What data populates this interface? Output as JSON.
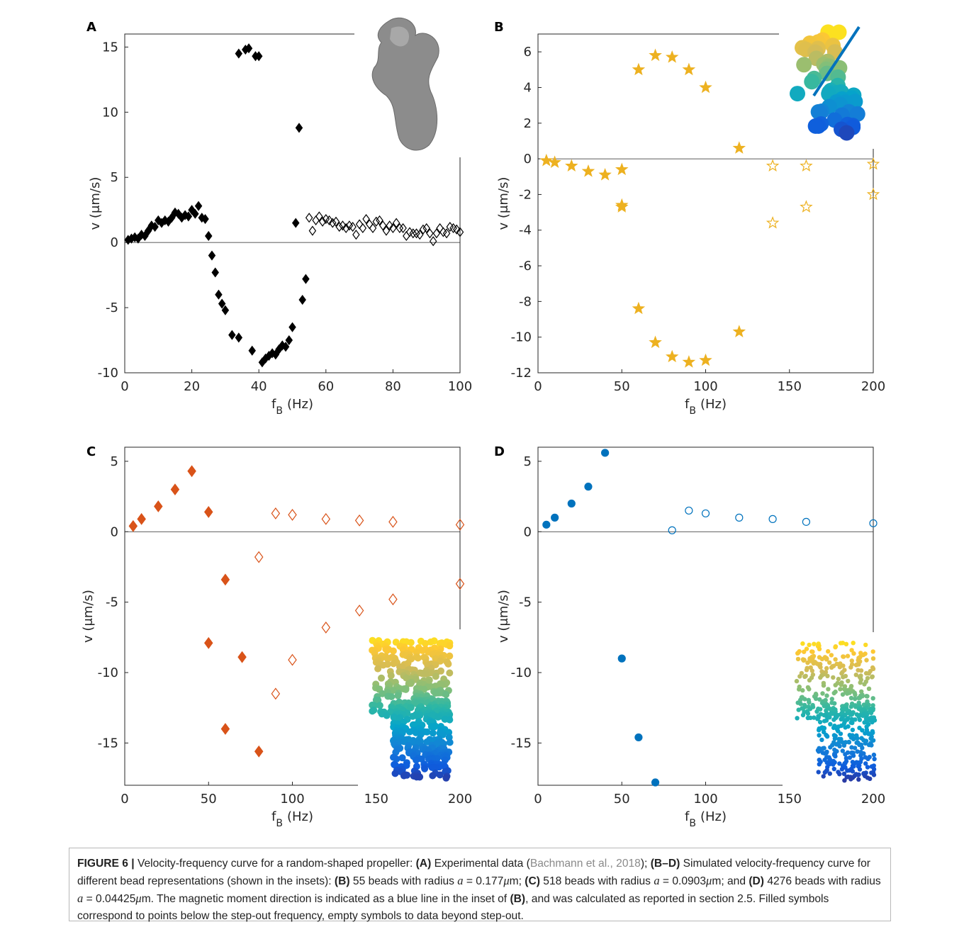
{
  "chart_data": [
    {
      "type": "scatter",
      "label": "A",
      "xlabel": "f",
      "xlabel_sub": "B",
      "xlabel_unit": "(Hz)",
      "ylabel": "v (μm/s)",
      "xlim": [
        0,
        100
      ],
      "ylim": [
        -10,
        16
      ],
      "xticks": [
        0,
        20,
        40,
        60,
        80,
        100
      ],
      "yticks": [
        -10,
        -5,
        0,
        5,
        10,
        15
      ],
      "series": [
        {
          "marker": "diamond",
          "filled": true,
          "color": "#000000",
          "x": [
            1,
            2,
            3,
            4,
            5,
            6,
            7,
            8,
            9,
            10,
            11,
            12,
            13,
            14,
            15,
            16,
            17,
            18,
            19,
            20,
            21,
            22,
            23,
            24,
            25,
            26,
            27,
            28,
            29,
            30,
            32,
            34,
            34,
            36,
            37,
            38,
            39,
            40,
            41,
            42,
            43,
            44,
            45,
            46,
            47,
            48,
            49,
            50,
            51,
            52,
            53,
            54
          ],
          "values": [
            0.2,
            0.3,
            0.4,
            0.3,
            0.6,
            0.5,
            0.9,
            1.3,
            1.2,
            1.7,
            1.5,
            1.7,
            1.6,
            1.9,
            2.3,
            2.2,
            1.9,
            2.1,
            2.0,
            2.5,
            2.2,
            2.8,
            1.9,
            1.8,
            0.5,
            -1.0,
            -2.3,
            -4.0,
            -4.7,
            -5.2,
            -7.1,
            -7.3,
            14.5,
            14.8,
            14.9,
            -8.3,
            14.3,
            14.3,
            -9.2,
            -8.9,
            -8.7,
            -8.5,
            -8.6,
            -8.2,
            -7.9,
            -8.0,
            -7.5,
            -6.5,
            1.5,
            8.8,
            -4.4,
            -2.8
          ]
        },
        {
          "marker": "diamond",
          "filled": false,
          "color": "#000000",
          "x": [
            55,
            56,
            57,
            58,
            59,
            60,
            61,
            62,
            63,
            64,
            65,
            66,
            67,
            68,
            69,
            70,
            71,
            72,
            73,
            74,
            75,
            76,
            77,
            78,
            79,
            80,
            81,
            82,
            83,
            84,
            85,
            86,
            87,
            88,
            89,
            90,
            91,
            92,
            93,
            94,
            95,
            96,
            97,
            98,
            99,
            100
          ],
          "values": [
            1.9,
            0.9,
            1.7,
            2.0,
            1.6,
            1.8,
            1.7,
            1.5,
            1.6,
            1.2,
            1.3,
            1.1,
            1.3,
            1.2,
            0.6,
            1.4,
            1.1,
            1.8,
            1.4,
            1.1,
            1.6,
            1.7,
            1.3,
            0.9,
            1.3,
            1.1,
            1.5,
            1.1,
            1.1,
            0.5,
            0.8,
            0.7,
            0.7,
            0.6,
            1.0,
            1.1,
            0.7,
            0.1,
            0.7,
            1.1,
            0.8,
            0.7,
            1.2,
            1.1,
            1.0,
            0.8
          ]
        }
      ]
    },
    {
      "type": "scatter",
      "label": "B",
      "xlabel": "f",
      "xlabel_sub": "B",
      "xlabel_unit": "(Hz)",
      "ylabel": "v (μm/s)",
      "xlim": [
        0,
        200
      ],
      "ylim": [
        -12,
        7
      ],
      "xticks": [
        0,
        50,
        100,
        150,
        200
      ],
      "yticks": [
        -12,
        -10,
        -8,
        -6,
        -4,
        -2,
        0,
        2,
        4,
        6
      ],
      "series": [
        {
          "marker": "star",
          "filled": true,
          "color": "#edb120",
          "x": [
            5,
            10,
            20,
            30,
            40,
            50,
            50,
            50,
            60,
            70,
            80,
            90,
            100,
            120,
            60,
            70,
            80,
            90,
            100,
            120
          ],
          "values": [
            -0.1,
            -0.2,
            -0.4,
            -0.7,
            -0.9,
            -0.6,
            -2.6,
            -2.7,
            5.0,
            5.8,
            5.7,
            5.0,
            4.0,
            0.6,
            -8.4,
            -10.3,
            -11.1,
            -11.4,
            -11.3,
            -9.7
          ]
        },
        {
          "marker": "star",
          "filled": false,
          "color": "#edb120",
          "x": [
            140,
            140,
            160,
            160,
            200,
            200
          ],
          "values": [
            -0.4,
            -3.6,
            -0.4,
            -2.7,
            -0.3,
            -2.0
          ]
        }
      ]
    },
    {
      "type": "scatter",
      "label": "C",
      "xlabel": "f",
      "xlabel_sub": "B",
      "xlabel_unit": "(Hz)",
      "ylabel": "v (μm/s)",
      "xlim": [
        0,
        200
      ],
      "ylim": [
        -18,
        6
      ],
      "xticks": [
        0,
        50,
        100,
        150,
        200
      ],
      "yticks": [
        -15,
        -10,
        -5,
        0,
        5
      ],
      "series": [
        {
          "marker": "diamond",
          "filled": true,
          "color": "#d95319",
          "x": [
            5,
            10,
            20,
            30,
            40,
            50,
            60,
            50,
            70,
            60,
            80
          ],
          "values": [
            0.4,
            0.9,
            1.8,
            3.0,
            4.3,
            1.4,
            -3.4,
            -7.9,
            -8.9,
            -14.0,
            -15.6
          ]
        },
        {
          "marker": "diamond",
          "filled": false,
          "color": "#d95319",
          "x": [
            80,
            90,
            100,
            120,
            140,
            160,
            200,
            90,
            100,
            120,
            140,
            160,
            200
          ],
          "values": [
            -1.8,
            1.3,
            1.2,
            0.9,
            0.8,
            0.7,
            0.5,
            -11.5,
            -9.1,
            -6.8,
            -5.6,
            -4.8,
            -3.7
          ]
        }
      ]
    },
    {
      "type": "scatter",
      "label": "D",
      "xlabel": "f",
      "xlabel_sub": "B",
      "xlabel_unit": "(Hz)",
      "ylabel": "v (μm/s)",
      "xlim": [
        0,
        200
      ],
      "ylim": [
        -18,
        6
      ],
      "xticks": [
        0,
        50,
        100,
        150,
        200
      ],
      "yticks": [
        -15,
        -10,
        -5,
        0,
        5
      ],
      "series": [
        {
          "marker": "circle",
          "filled": true,
          "color": "#0072bd",
          "x": [
            5,
            10,
            20,
            30,
            40,
            50,
            60,
            70
          ],
          "values": [
            0.5,
            1.0,
            2.0,
            3.2,
            5.6,
            -9.0,
            -14.6,
            -17.8
          ]
        },
        {
          "marker": "circle",
          "filled": false,
          "color": "#0072bd",
          "x": [
            80,
            90,
            100,
            120,
            140,
            160,
            200
          ],
          "values": [
            0.1,
            1.5,
            1.3,
            1.0,
            0.9,
            0.7,
            0.6
          ]
        }
      ]
    }
  ],
  "caption": [
    {
      "text": "FIGURE 6 |",
      "style": "bold"
    },
    {
      "text": " Velocity-frequency curve for a random-shaped propeller: ",
      "style": "normal"
    },
    {
      "text": "(A)",
      "style": "bold"
    },
    {
      "text": " Experimental data (",
      "style": "normal"
    },
    {
      "text": "Bachmann et al., 2018",
      "style": "link"
    },
    {
      "text": "); ",
      "style": "normal"
    },
    {
      "text": "(B–D)",
      "style": "bold"
    },
    {
      "text": " Simulated velocity-frequency curve for different bead representations (shown in the insets): ",
      "style": "normal"
    },
    {
      "text": "(B)",
      "style": "bold"
    },
    {
      "text": " 55 beads with radius ",
      "style": "normal"
    },
    {
      "text": "a",
      "style": "italic"
    },
    {
      "text": " = 0.177",
      "style": "normal"
    },
    {
      "text": "μ",
      "style": "italic"
    },
    {
      "text": "m; ",
      "style": "normal"
    },
    {
      "text": "(C)",
      "style": "bold"
    },
    {
      "text": " 518 beads with radius ",
      "style": "normal"
    },
    {
      "text": "a",
      "style": "italic"
    },
    {
      "text": " = 0.0903",
      "style": "normal"
    },
    {
      "text": "μ",
      "style": "italic"
    },
    {
      "text": "m; and ",
      "style": "normal"
    },
    {
      "text": "(D)",
      "style": "bold"
    },
    {
      "text": " 4276 beads with radius ",
      "style": "normal"
    },
    {
      "text": "a",
      "style": "italic"
    },
    {
      "text": " = 0.04425",
      "style": "normal"
    },
    {
      "text": "μ",
      "style": "italic"
    },
    {
      "text": "m. The magnetic moment direction is indicated as a blue line in the inset of ",
      "style": "normal"
    },
    {
      "text": "(B)",
      "style": "bold"
    },
    {
      "text": ", and was calculated as reported in section 2.5. Filled symbols correspond to points below the step-out frequency, empty symbols to data beyond step-out.",
      "style": "normal"
    }
  ]
}
